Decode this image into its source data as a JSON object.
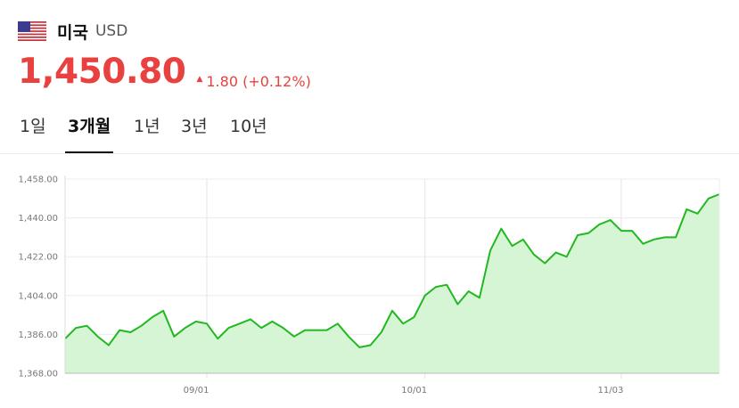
{
  "header": {
    "flag_icon": "us-flag-icon",
    "country": "미국",
    "currency": "USD"
  },
  "quote": {
    "rate": "1,450.80",
    "change_icon": "triangle-up-icon",
    "change": "1.80 (+0.12%)",
    "color": "#e8413f"
  },
  "tabs": [
    {
      "label": "1일",
      "active": false
    },
    {
      "label": "3개월",
      "active": true
    },
    {
      "label": "1년",
      "active": false
    },
    {
      "label": "3년",
      "active": false
    },
    {
      "label": "10년",
      "active": false
    }
  ],
  "chart_data": {
    "type": "area",
    "line_color": "#22b822",
    "fill_color": "#d6f5d4",
    "ylim": [
      1368,
      1458
    ],
    "yticks": [
      "1,458.00",
      "1,440.00",
      "1,422.00",
      "1,404.00",
      "1,386.00",
      "1,368.00"
    ],
    "xticks": [
      "09/01",
      "10/01",
      "11/03"
    ],
    "grid": true,
    "values": [
      1384,
      1389,
      1390,
      1385,
      1381,
      1388,
      1387,
      1390,
      1394,
      1397,
      1385,
      1389,
      1392,
      1391,
      1384,
      1389,
      1391,
      1393,
      1389,
      1392,
      1389,
      1385,
      1388,
      1388,
      1388,
      1391,
      1385,
      1380,
      1381,
      1387,
      1397,
      1391,
      1394,
      1404,
      1408,
      1409,
      1400,
      1406,
      1403,
      1425,
      1435,
      1427,
      1430,
      1423,
      1419,
      1424,
      1422,
      1432,
      1433,
      1437,
      1439,
      1434,
      1434,
      1428,
      1430,
      1431,
      1431,
      1444,
      1442,
      1449,
      1451
    ]
  }
}
